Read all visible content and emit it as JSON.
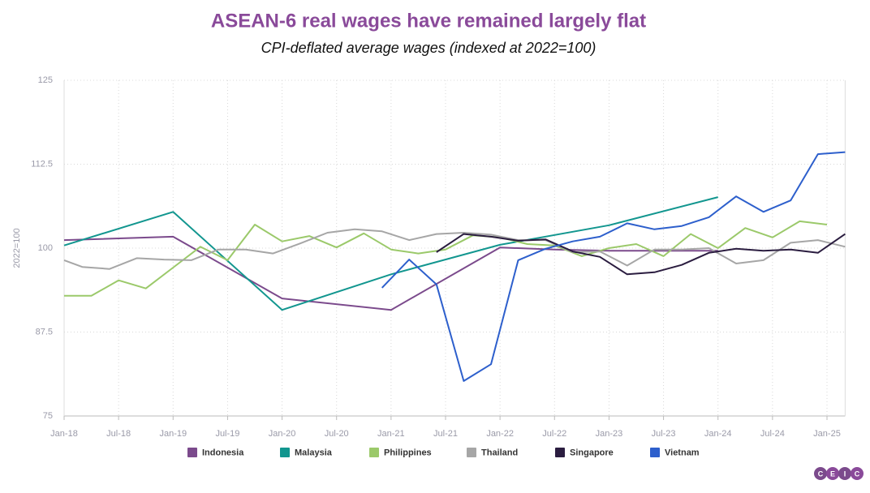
{
  "chart_data": {
    "type": "line",
    "title": "ASEAN-6 real wages have remained largely flat",
    "subtitle": "CPI-deflated average wages (indexed at 2022=100)",
    "y_label": "2022=100",
    "xlim": [
      "Jan-18",
      "Mar-25"
    ],
    "xticks": [
      "Jan-18",
      "Jul-18",
      "Jan-19",
      "Jul-19",
      "Jan-20",
      "Jul-20",
      "Jan-21",
      "Jul-21",
      "Jan-22",
      "Jul-22",
      "Jan-23",
      "Jul-23",
      "Jan-24",
      "Jul-24",
      "Jan-25"
    ],
    "ylim": [
      75,
      125
    ],
    "yticks": [
      75,
      87.5,
      100,
      112.5,
      125
    ],
    "grid": true,
    "legend": "bottom",
    "series": [
      {
        "name": "Indonesia",
        "color": "#7b4a8c",
        "x": [
          "Jan-18",
          "Jan-19",
          "Jan-20",
          "Jan-21",
          "Jan-22",
          "Jul-22",
          "Jan-23",
          "Jul-23",
          "Jan-24"
        ],
        "values": [
          101.2,
          101.7,
          92.5,
          90.8,
          100.1,
          99.8,
          99.6,
          99.6,
          99.6
        ]
      },
      {
        "name": "Malaysia",
        "color": "#12968f",
        "x": [
          "Jan-18",
          "Jan-19",
          "Jan-20",
          "Jan-21",
          "Jan-22",
          "Jan-23",
          "Jan-24"
        ],
        "values": [
          100.4,
          105.4,
          90.8,
          96.1,
          100.5,
          103.4,
          107.6
        ]
      },
      {
        "name": "Philippines",
        "color": "#9bc96a",
        "x": [
          "Jan-18",
          "Apr-18",
          "Jul-18",
          "Oct-18",
          "Jan-19",
          "Apr-19",
          "Jul-19",
          "Oct-19",
          "Jan-20",
          "Apr-20",
          "Jul-20",
          "Oct-20",
          "Jan-21",
          "Apr-21",
          "Jul-21",
          "Oct-21",
          "Jan-22",
          "Apr-22",
          "Jul-22",
          "Oct-22",
          "Jan-23",
          "Apr-23",
          "Jul-23",
          "Oct-23",
          "Jan-24",
          "Apr-24",
          "Jul-24",
          "Oct-24",
          "Jan-25"
        ],
        "values": [
          92.9,
          92.9,
          95.2,
          94.0,
          97.1,
          100.2,
          98.2,
          103.5,
          101.0,
          101.8,
          100.1,
          102.2,
          99.8,
          99.2,
          99.8,
          101.9,
          101.6,
          100.6,
          100.4,
          98.8,
          100.0,
          100.6,
          98.8,
          102.1,
          100.0,
          103.0,
          101.6,
          104.0,
          103.5
        ]
      },
      {
        "name": "Thailand",
        "color": "#a6a6a6",
        "x": [
          "Jan-18",
          "Mar-18",
          "Jun-18",
          "Sep-18",
          "Dec-18",
          "Mar-19",
          "Jun-19",
          "Sep-19",
          "Dec-19",
          "Mar-20",
          "Jun-20",
          "Sep-20",
          "Dec-20",
          "Mar-21",
          "Jun-21",
          "Sep-21",
          "Dec-21",
          "Mar-22",
          "Jun-22",
          "Sep-22",
          "Dec-22",
          "Mar-23",
          "Jun-23",
          "Sep-23",
          "Dec-23",
          "Mar-24",
          "Jun-24",
          "Sep-24",
          "Dec-24",
          "Mar-25"
        ],
        "values": [
          98.2,
          97.2,
          96.9,
          98.5,
          98.3,
          98.2,
          99.8,
          99.8,
          99.2,
          100.7,
          102.3,
          102.8,
          102.5,
          101.2,
          102.1,
          102.3,
          102.0,
          101.2,
          101.2,
          99.4,
          99.5,
          97.4,
          99.8,
          99.8,
          100.0,
          97.7,
          98.2,
          100.8,
          101.2,
          100.2
        ]
      },
      {
        "name": "Singapore",
        "color": "#2b1d40",
        "x": [
          "Jun-21",
          "Sep-21",
          "Dec-21",
          "Mar-22",
          "Jun-22",
          "Sep-22",
          "Dec-22",
          "Mar-23",
          "Jun-23",
          "Sep-23",
          "Dec-23",
          "Mar-24",
          "Jun-24",
          "Sep-24",
          "Dec-24",
          "Mar-25"
        ],
        "values": [
          99.4,
          102.1,
          101.7,
          101.1,
          101.3,
          99.5,
          98.7,
          96.1,
          96.4,
          97.5,
          99.3,
          99.9,
          99.6,
          99.8,
          99.3,
          102.1
        ]
      },
      {
        "name": "Vietnam",
        "color": "#2d5fcc",
        "x": [
          "Dec-20",
          "Mar-21",
          "Jun-21",
          "Sep-21",
          "Dec-21",
          "Mar-22",
          "Jun-22",
          "Sep-22",
          "Dec-22",
          "Mar-23",
          "Jun-23",
          "Sep-23",
          "Dec-23",
          "Mar-24",
          "Jun-24",
          "Sep-24",
          "Dec-24",
          "Mar-25"
        ],
        "values": [
          94.1,
          98.3,
          94.6,
          80.2,
          82.7,
          98.2,
          99.9,
          101.0,
          101.7,
          103.7,
          102.8,
          103.3,
          104.6,
          107.7,
          105.4,
          107.1,
          114.0,
          114.3
        ]
      }
    ]
  },
  "logo": [
    "C",
    "E",
    "I",
    "C"
  ]
}
